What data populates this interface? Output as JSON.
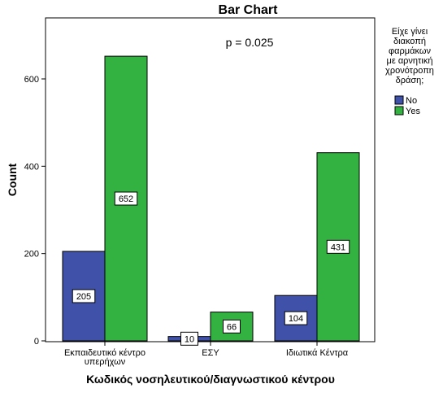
{
  "chart_data": {
    "type": "bar",
    "title": "Bar Chart",
    "xlabel": "Κωδικός νοσηλευτικού/διαγνωστικού κέντρου",
    "ylabel": "Count",
    "annotation": "p = 0.025",
    "categories": [
      "Εκπαιδευτικό κέντρο υπερήχων",
      "ΕΣΥ",
      "Ιδιωτικά Κέντρα"
    ],
    "series": [
      {
        "name": "No",
        "values": [
          205,
          10,
          104
        ],
        "color": "#3f51a8"
      },
      {
        "name": "Yes",
        "values": [
          652,
          66,
          431
        ],
        "color": "#33b241"
      }
    ],
    "ylim": [
      0,
      750
    ],
    "yticks": [
      0,
      200,
      400,
      600
    ],
    "grid": false,
    "legend": {
      "title_lines": [
        "Είχε γίνει",
        "διακοπή",
        "φαρμάκων",
        "με αρνητική",
        "χρονότροπη",
        "δράση;"
      ],
      "placement": "right"
    }
  }
}
